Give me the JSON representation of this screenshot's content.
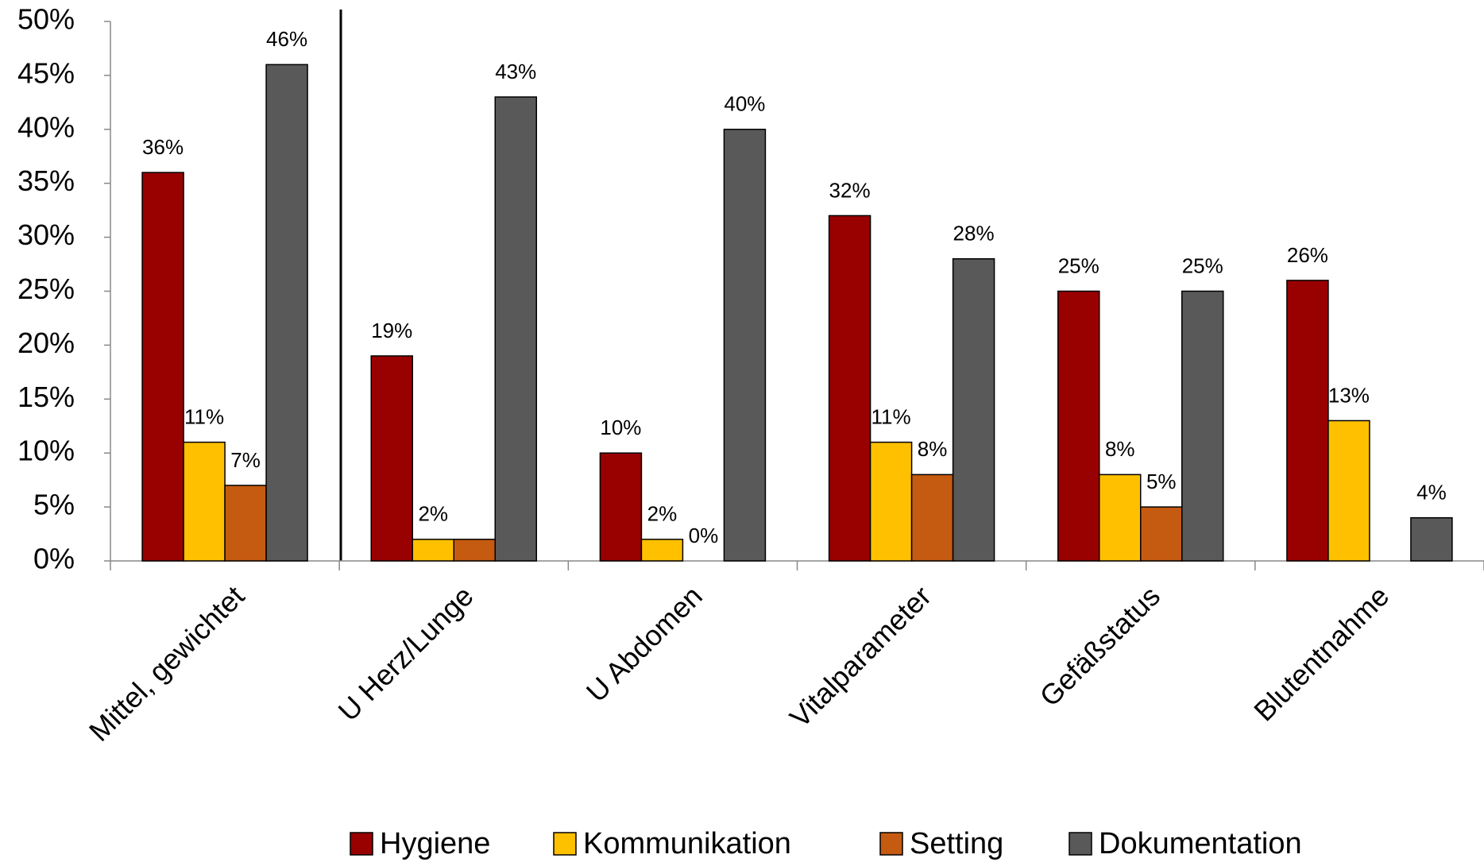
{
  "chart_data": {
    "type": "bar",
    "categories": [
      "Mittel, gewichtet",
      "U Herz/Lunge",
      "U Abdomen",
      "Vitalparameter",
      "Gefäßstatus",
      "Blutentnahme"
    ],
    "series": [
      {
        "name": "Hygiene",
        "color": "#990000",
        "values": [
          36,
          19,
          10,
          32,
          25,
          26
        ],
        "value_labels": [
          "36%",
          "19%",
          "10%",
          "32%",
          "25%",
          "26%"
        ]
      },
      {
        "name": "Kommunikation",
        "color": "#ffc000",
        "values": [
          11,
          2,
          2,
          11,
          8,
          13
        ],
        "value_labels": [
          "11%",
          "2%",
          "2%",
          "11%",
          "8%",
          "13%"
        ]
      },
      {
        "name": "Setting",
        "color": "#c55a11",
        "values": [
          7,
          2,
          0,
          8,
          5,
          null
        ],
        "value_labels": [
          "7%",
          null,
          "0%",
          "8%",
          "5%",
          null
        ]
      },
      {
        "name": "Dokumentation",
        "color": "#595959",
        "values": [
          46,
          43,
          40,
          28,
          25,
          4
        ],
        "value_labels": [
          "46%",
          "43%",
          "40%",
          "28%",
          "25%",
          "4%"
        ]
      }
    ],
    "ylim": [
      0,
      50
    ],
    "yticks": [
      {
        "value": 0,
        "label": "0%"
      },
      {
        "value": 5,
        "label": "5%"
      },
      {
        "value": 10,
        "label": "10%"
      },
      {
        "value": 15,
        "label": "15%"
      },
      {
        "value": 20,
        "label": "20%"
      },
      {
        "value": 25,
        "label": "25%"
      },
      {
        "value": 30,
        "label": "30%"
      },
      {
        "value": 35,
        "label": "35%"
      },
      {
        "value": 40,
        "label": "40%"
      },
      {
        "value": 45,
        "label": "45%"
      },
      {
        "value": 50,
        "label": "50%"
      }
    ],
    "legend": "bottom"
  }
}
